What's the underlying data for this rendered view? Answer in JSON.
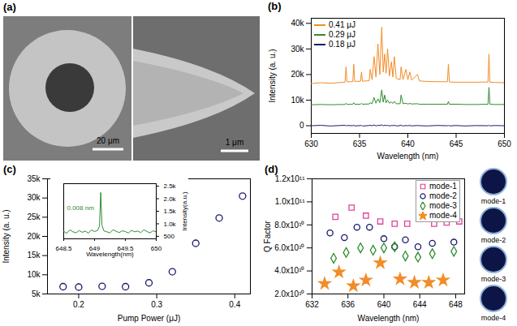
{
  "chart_data": [
    {
      "type": "image",
      "title": "(a)",
      "annotations": [
        "20 μm",
        "1 μm"
      ]
    },
    {
      "type": "line",
      "title": "(b)",
      "xlabel": "Wavelength (nm)",
      "ylabel": "Intensity (a. u.)",
      "x": [
        630,
        631,
        632,
        633,
        633.5,
        633.6,
        633.7,
        634.3,
        634.4,
        634.5,
        635.1,
        635.2,
        635.3,
        636.0,
        636.1,
        636.3,
        636.5,
        636.7,
        636.9,
        637.1,
        637.3,
        637.45,
        637.6,
        637.75,
        637.9,
        638.1,
        638.3,
        638.45,
        638.6,
        638.8,
        639.2,
        639.3,
        639.5,
        639.8,
        640.0,
        640.2,
        640.4,
        641.0,
        641.2,
        642,
        643,
        644.1,
        644.2,
        644.3,
        645,
        646,
        647,
        648.3,
        648.4,
        648.5,
        649,
        650
      ],
      "series": [
        {
          "name": "0.41 μJ",
          "color": "#f28c28",
          "values": [
            16500,
            16800,
            16600,
            16900,
            17000,
            23000,
            17200,
            17200,
            24000,
            17300,
            17400,
            21000,
            17400,
            17600,
            22000,
            18000,
            27000,
            19000,
            32000,
            20000,
            38500,
            21000,
            28000,
            20500,
            30000,
            19500,
            25000,
            19000,
            27000,
            18500,
            18000,
            23000,
            18000,
            22000,
            18000,
            21000,
            17800,
            20000,
            17500,
            17300,
            17200,
            17200,
            24000,
            17100,
            17000,
            17000,
            17000,
            17100,
            28000,
            17000,
            16900,
            16800
          ]
        },
        {
          "name": "0.29 μJ",
          "color": "#2e8b2e",
          "values": [
            8200,
            8300,
            8200,
            8300,
            8300,
            8800,
            8300,
            8400,
            9000,
            8400,
            8400,
            8800,
            8400,
            8500,
            9000,
            8600,
            11000,
            8800,
            10500,
            9000,
            14000,
            9200,
            12000,
            9000,
            10000,
            8800,
            9300,
            8700,
            9500,
            8600,
            8600,
            12000,
            8600,
            8800,
            8500,
            8700,
            8500,
            8600,
            8400,
            8400,
            8400,
            8400,
            9500,
            8400,
            8400,
            8300,
            8300,
            8400,
            15000,
            8400,
            8300,
            8300
          ]
        },
        {
          "name": "0.18 μJ",
          "color": "#1a1a6e",
          "values": [
            0,
            150,
            -100,
            80,
            200,
            -50,
            100,
            0,
            250,
            -80,
            60,
            150,
            -120,
            90,
            200,
            0,
            300,
            -60,
            150,
            80,
            350,
            -40,
            200,
            60,
            150,
            -90,
            100,
            40,
            180,
            -70,
            50,
            200,
            -100,
            80,
            0,
            120,
            -60,
            90,
            30,
            -80,
            100,
            0,
            150,
            -50,
            70,
            -90,
            60,
            0,
            250,
            -60,
            80,
            0
          ]
        }
      ],
      "xlim": [
        630,
        650
      ],
      "xticks": [
        630,
        635,
        640,
        645,
        650
      ],
      "ylim": [
        -3000,
        42000
      ],
      "yticks": [
        0,
        {
          "value": 10000,
          "label": "10k"
        },
        {
          "value": 20000,
          "label": "20k"
        },
        {
          "value": 30000,
          "label": "30k"
        },
        {
          "value": 40000,
          "label": "40k"
        }
      ],
      "legend": "top-left"
    },
    {
      "type": "scatter",
      "title": "(c)",
      "xlabel": "Pump Power (μJ)",
      "ylabel": "Intensity (a. u.)",
      "x": [
        0.18,
        0.2,
        0.23,
        0.26,
        0.29,
        0.32,
        0.35,
        0.38,
        0.41
      ],
      "values": [
        6900,
        6800,
        7000,
        6900,
        7900,
        10800,
        18200,
        24800,
        30500
      ],
      "color": "#1a1a6e",
      "marker": "circle",
      "xlim": [
        0.16,
        0.42
      ],
      "xticks": [
        0.2,
        0.3,
        0.4
      ],
      "ylim": [
        5000,
        35000
      ],
      "yticks": [
        {
          "value": 5000,
          "label": "5k"
        },
        {
          "value": 10000,
          "label": "10k"
        },
        {
          "value": 15000,
          "label": "15k"
        },
        {
          "value": 20000,
          "label": "20k"
        },
        {
          "value": 25000,
          "label": "25k"
        },
        {
          "value": 30000,
          "label": "30k"
        },
        {
          "value": 35000,
          "label": "35k"
        }
      ]
    },
    {
      "type": "line",
      "xlabel": "Wavelength(nm)",
      "ylabel": "Intensity(a.u.)",
      "annotations": [
        "0.008 nm"
      ],
      "x": [
        648.5,
        648.55,
        648.6,
        648.65,
        648.7,
        648.75,
        648.8,
        648.85,
        648.9,
        648.95,
        649.0,
        649.05,
        649.08,
        649.1,
        649.12,
        649.15,
        649.2,
        649.25,
        649.3,
        649.35,
        649.4,
        649.45,
        649.5,
        649.55,
        649.6,
        649.65,
        649.7,
        649.75,
        649.8,
        649.85,
        649.9,
        649.95,
        650.0
      ],
      "values": [
        700,
        620,
        760,
        680,
        640,
        730,
        660,
        710,
        630,
        750,
        690,
        740,
        900,
        2250,
        950,
        720,
        680,
        640,
        760,
        700,
        650,
        720,
        690,
        630,
        740,
        680,
        710,
        650,
        760,
        690,
        640,
        720,
        680
      ],
      "color": "#2e8b2e",
      "xlim": [
        648.5,
        650
      ],
      "xticks": [
        648.5,
        649,
        649.5,
        650
      ],
      "ylim": [
        400,
        2600
      ],
      "yticks": [
        500,
        {
          "value": 1000,
          "label": "1.0k"
        },
        {
          "value": 1500,
          "label": "1.5k"
        },
        {
          "value": 2000,
          "label": "2.0k"
        },
        {
          "value": 2500,
          "label": "2.5k"
        }
      ]
    },
    {
      "type": "scatter",
      "title": "(d)",
      "xlabel": "Wavelength (nm)",
      "ylabel": "Q Factor",
      "series": [
        {
          "name": "mode-1",
          "color": "#e0449a",
          "marker": "square",
          "x": [
            634.6,
            636.4,
            638.0,
            639.6,
            641.2,
            642.6,
            644.1,
            645.6,
            647.0,
            648.4
          ],
          "values": [
            87000000000.0,
            95000000000.0,
            88000000000.0,
            83000000000.0,
            81000000000.0,
            81000000000.0,
            85000000000.0,
            81000000000.0,
            82000000000.0,
            83000000000.0
          ]
        },
        {
          "name": "mode-2",
          "color": "#1a1a6e",
          "marker": "circle",
          "x": [
            634.0,
            635.6,
            637.0,
            638.4,
            640.0,
            641.2,
            642.4,
            643.8,
            645.4,
            647.8
          ],
          "values": [
            73000000000.0,
            69000000000.0,
            78000000000.0,
            78000000000.0,
            68000000000.0,
            61000000000.0,
            67000000000.0,
            61000000000.0,
            64000000000.0,
            65000000000.0
          ]
        },
        {
          "name": "mode-3",
          "color": "#2e8b2e",
          "marker": "diamond",
          "x": [
            634.4,
            635.8,
            637.4,
            638.8,
            640.0,
            641.2,
            642.4,
            643.8,
            645.4,
            647.8
          ],
          "values": [
            51000000000.0,
            56000000000.0,
            60000000000.0,
            58000000000.0,
            60000000000.0,
            61000000000.0,
            53000000000.0,
            52000000000.0,
            55000000000.0,
            57000000000.0
          ]
        },
        {
          "name": "mode-4",
          "color": "#f28c28",
          "marker": "star",
          "x": [
            633.4,
            635.0,
            636.6,
            638.0,
            639.6,
            641.8,
            643.4,
            645.0,
            646.6
          ],
          "values": [
            29000000000.0,
            39000000000.0,
            27000000000.0,
            32000000000.0,
            47000000000.0,
            33000000000.0,
            30000000000.0,
            30000000000.0,
            32000000000.0
          ]
        }
      ],
      "xlim": [
        632,
        649
      ],
      "xticks": [
        632,
        636,
        640,
        644,
        648
      ],
      "ylim": [
        20000000000.0,
        120000000000.0
      ],
      "yticks": [
        {
          "value": 20000000000.0,
          "label": "2.0x10¹⁰"
        },
        {
          "value": 40000000000.0,
          "label": "4.0x10¹⁰"
        },
        {
          "value": 60000000000.0,
          "label": "6.0x10¹⁰"
        },
        {
          "value": 80000000000.0,
          "label": "8.0x10¹⁰"
        },
        {
          "value": 100000000000.0,
          "label": "1.0x10¹¹"
        },
        {
          "value": 120000000000.0,
          "label": "1.2x10¹¹"
        }
      ],
      "legend": "top-right"
    }
  ]
}
